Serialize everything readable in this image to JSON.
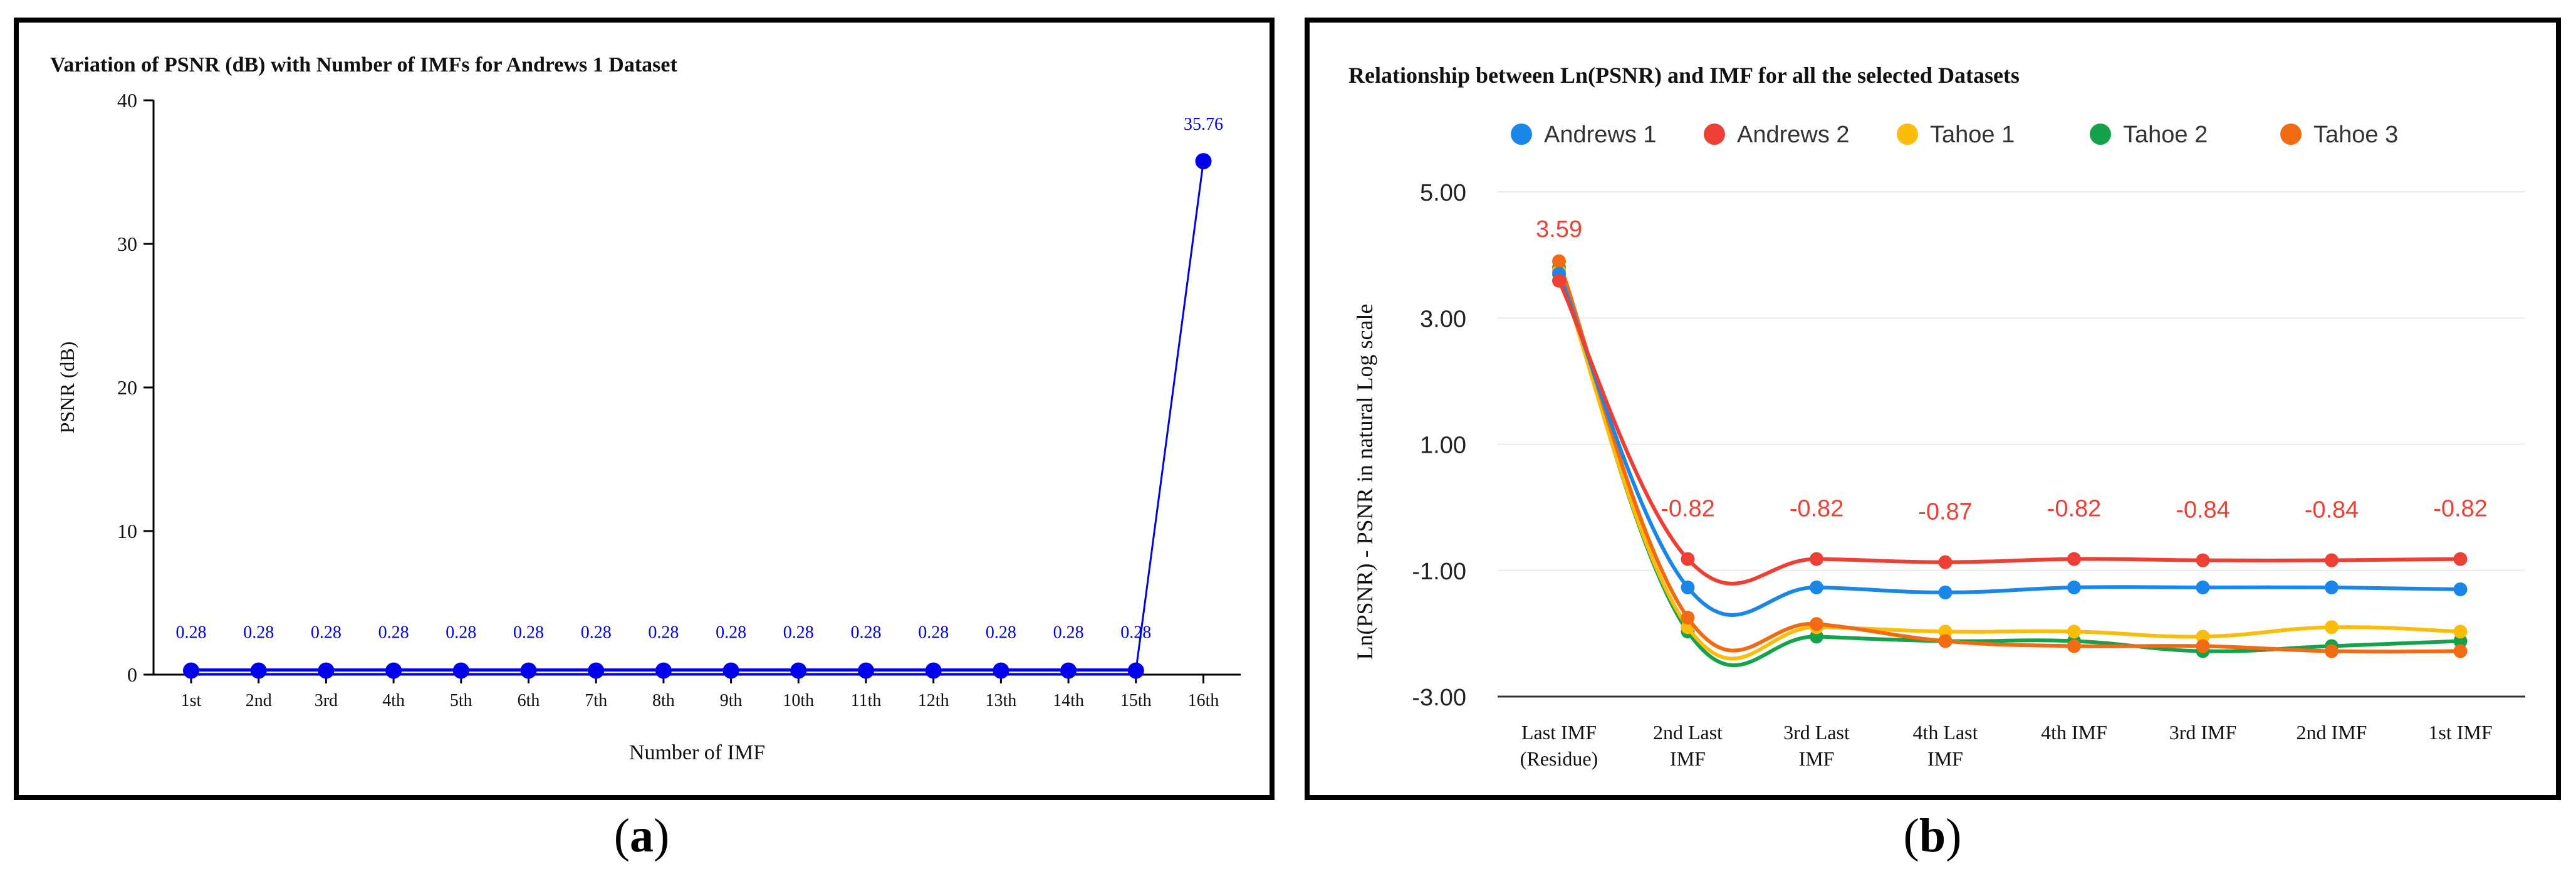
{
  "chart_data": [
    {
      "panel": "a",
      "type": "line",
      "title": "Variation of PSNR (dB) with Number of IMFs for Andrews 1 Dataset",
      "xlabel": "Number of IMF",
      "ylabel": "PSNR (dB)",
      "ylim": [
        0,
        40
      ],
      "yticks": [
        "0",
        "10",
        "20",
        "30",
        "40"
      ],
      "categories": [
        "1st",
        "2nd",
        "3rd",
        "4th",
        "5th",
        "6th",
        "7th",
        "8th",
        "9th",
        "10th",
        "11th",
        "12th",
        "13th",
        "14th",
        "15th",
        "16th"
      ],
      "series": [
        {
          "name": "Andrews 1",
          "color": "#0000ee",
          "values": [
            0.28,
            0.28,
            0.28,
            0.28,
            0.28,
            0.28,
            0.28,
            0.28,
            0.28,
            0.28,
            0.28,
            0.28,
            0.28,
            0.28,
            0.28,
            35.76
          ],
          "labels": [
            "0.28",
            "0.28",
            "0.28",
            "0.28",
            "0.28",
            "0.28",
            "0.28",
            "0.28",
            "0.28",
            "0.28",
            "0.28",
            "0.28",
            "0.28",
            "0.28",
            "0.28",
            "35.76"
          ]
        }
      ]
    },
    {
      "panel": "b",
      "type": "line",
      "title": "Relationship between Ln(PSNR) and IMF for all the selected Datasets",
      "xlabel": "",
      "ylabel": "Ln(PSNR) - PSNR in natural Log scale",
      "ylim": [
        -3,
        5
      ],
      "yticks": [
        "-3.00",
        "-1.00",
        "1.00",
        "3.00",
        "5.00"
      ],
      "categories": [
        [
          "Last IMF",
          "(Residue)"
        ],
        [
          "2nd Last",
          "IMF"
        ],
        [
          "3rd Last",
          "IMF"
        ],
        [
          "4th Last",
          "IMF"
        ],
        [
          "4th IMF"
        ],
        [
          "3rd IMF"
        ],
        [
          "2nd IMF"
        ],
        [
          "1st IMF"
        ]
      ],
      "legend_position": "top",
      "series": [
        {
          "name": "Andrews 1",
          "color": "#1a87e8",
          "values": [
            3.7,
            -1.27,
            -1.27,
            -1.35,
            -1.27,
            -1.27,
            -1.27,
            -1.3
          ]
        },
        {
          "name": "Andrews 2",
          "color": "#ee3f34",
          "values": [
            3.59,
            -0.82,
            -0.82,
            -0.87,
            -0.82,
            -0.84,
            -0.84,
            -0.82
          ],
          "labels": [
            "3.59",
            "-0.82",
            "-0.82",
            "-0.87",
            "-0.82",
            "-0.84",
            "-0.84",
            "-0.82"
          ]
        },
        {
          "name": "Tahoe 1",
          "color": "#fbbd0b",
          "values": [
            3.75,
            -1.9,
            -1.9,
            -1.97,
            -1.97,
            -2.05,
            -1.9,
            -1.97
          ]
        },
        {
          "name": "Tahoe 2",
          "color": "#14a34a",
          "values": [
            3.8,
            -1.97,
            -2.05,
            -2.12,
            -2.12,
            -2.28,
            -2.2,
            -2.12
          ]
        },
        {
          "name": "Tahoe 3",
          "color": "#f26a12",
          "values": [
            3.9,
            -1.75,
            -1.85,
            -2.12,
            -2.2,
            -2.2,
            -2.28,
            -2.28
          ]
        }
      ]
    }
  ],
  "captions": {
    "a": "a",
    "b": "b"
  }
}
